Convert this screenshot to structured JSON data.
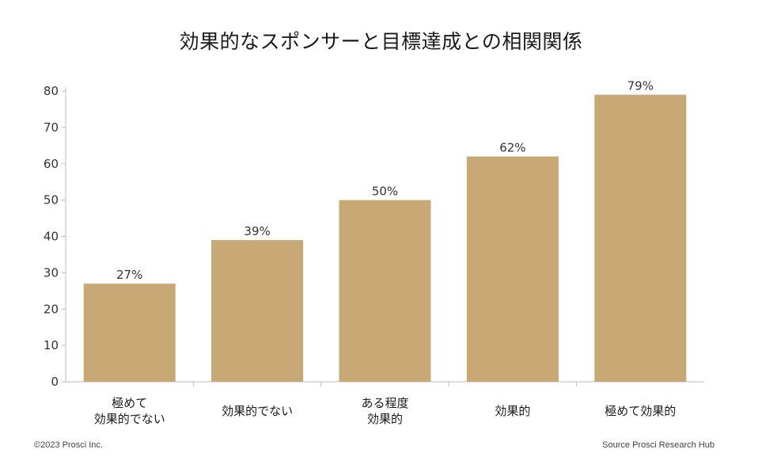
{
  "chart_data": {
    "type": "bar",
    "title": "効果的なスポンサーと目標達成との相関関係",
    "categories": [
      [
        "極めて",
        "効果的でない"
      ],
      [
        "効果的でない"
      ],
      [
        "ある程度",
        "効果的"
      ],
      [
        "効果的"
      ],
      [
        "極めて効果的"
      ]
    ],
    "values": [
      27,
      39,
      50,
      62,
      79
    ],
    "value_labels": [
      "27%",
      "39%",
      "50%",
      "62%",
      "79%"
    ],
    "ylim": [
      0,
      80
    ],
    "yticks": [
      0,
      10,
      20,
      30,
      40,
      50,
      60,
      70,
      80
    ],
    "grid": false,
    "bar_color": "#c8a874",
    "axis_color": "#bbbbbb"
  },
  "footer": {
    "copyright": "©2023 Prosci Inc.",
    "source": "Source Prosci Research Hub"
  }
}
